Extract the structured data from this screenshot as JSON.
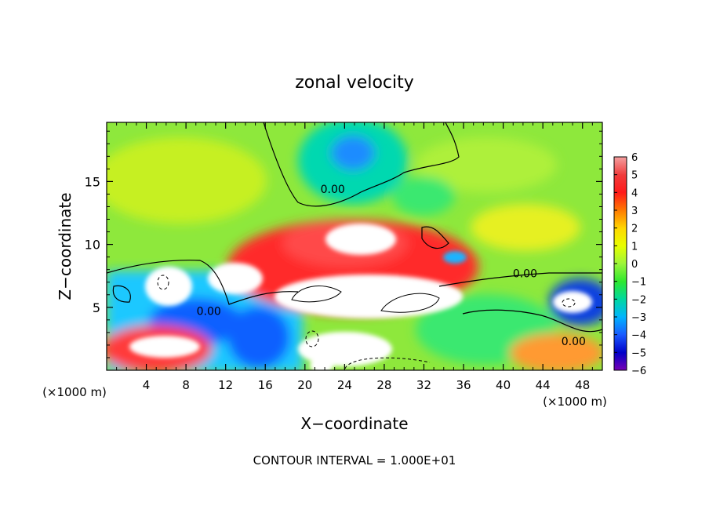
{
  "chart_data": {
    "type": "heatmap",
    "title": "zonal velocity",
    "xlabel": "X−coordinate",
    "ylabel": "Z−coordinate",
    "x_unit_left": "(×1000 m)",
    "x_unit_right": "(×1000 m)",
    "footer": "CONTOUR INTERVAL = 1.000E+01",
    "xlim": [
      0,
      50
    ],
    "ylim": [
      0,
      19.7
    ],
    "xticks": [
      "4",
      "8",
      "12",
      "16",
      "20",
      "24",
      "28",
      "32",
      "36",
      "40",
      "44",
      "48"
    ],
    "yticks": [
      "5",
      "10",
      "15"
    ],
    "xtick_values": [
      4,
      8,
      12,
      16,
      20,
      24,
      28,
      32,
      36,
      40,
      44,
      48
    ],
    "ytick_values": [
      5,
      10,
      15
    ],
    "colorbar": {
      "labels": [
        "6",
        "5",
        "4",
        "3",
        "2",
        "1",
        "0",
        "−1",
        "−2",
        "−3",
        "−4",
        "−5",
        "−6"
      ],
      "colors": [
        "#f4a0a0",
        "#f03c3c",
        "#ff1a1a",
        "#ff7a00",
        "#ffd700",
        "#e8ff00",
        "#9cf53a",
        "#2ee82e",
        "#00d8a0",
        "#00b4ff",
        "#1a5aff",
        "#0000c8",
        "#7a00b4"
      ]
    },
    "contour_labels": [
      {
        "text": "0.00",
        "x": 22.8,
        "y": 14.4
      },
      {
        "text": "0.00",
        "x": 10.3,
        "y": 4.7
      },
      {
        "text": "0.00",
        "x": 42.2,
        "y": 7.7
      },
      {
        "text": "0.00",
        "x": 47.1,
        "y": 2.3
      }
    ]
  }
}
